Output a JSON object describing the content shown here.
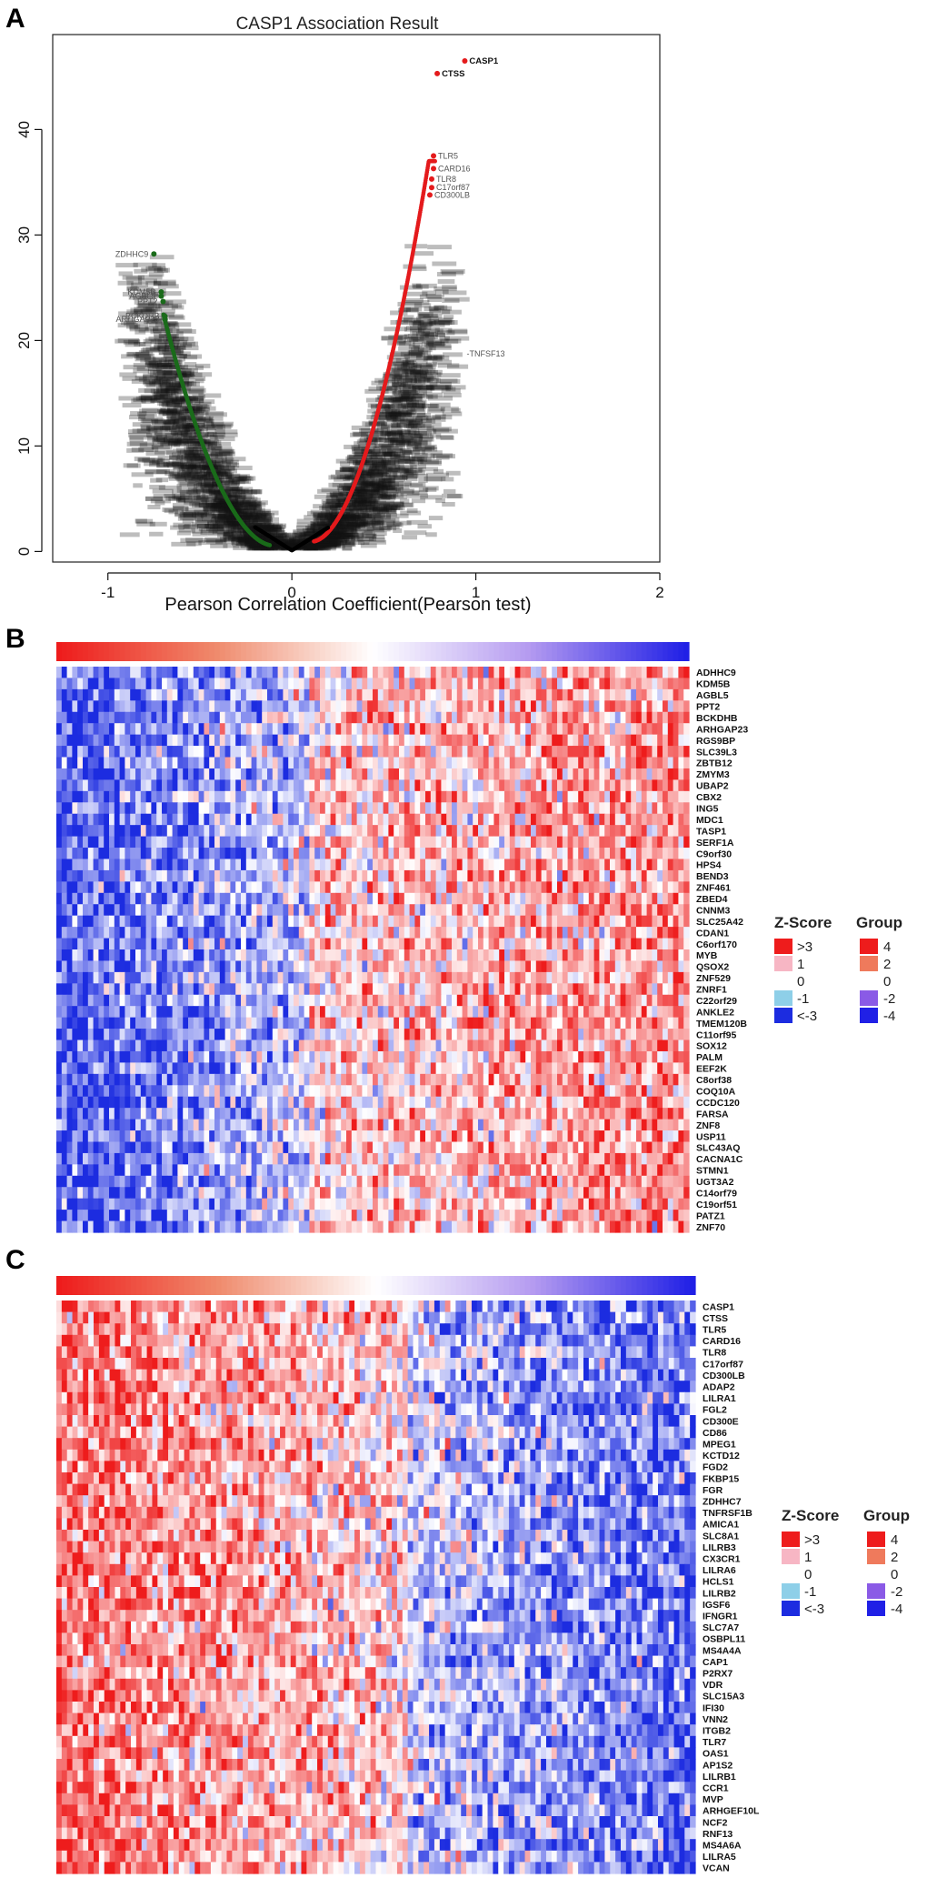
{
  "panels": {
    "a": "A",
    "b": "B",
    "c": "C"
  },
  "chart_data": [
    {
      "type": "scatter",
      "panel": "A",
      "title": "CASP1 Association Result",
      "xlabel": "Pearson Correlation Coefficient(Pearson test)",
      "ylabel": "",
      "xlim": [
        -1.3,
        2.0
      ],
      "ylim": [
        -1,
        49
      ],
      "xticks": [
        "-1",
        "0",
        "1",
        "2"
      ],
      "xtick_values": [
        -1,
        0,
        1,
        2
      ],
      "yticks": [
        "0",
        "10",
        "20",
        "30",
        "40"
      ],
      "ytick_values": [
        0,
        10,
        20,
        30,
        40
      ],
      "colors": {
        "positive": "#e41a1c",
        "negative": "#1a6b1a",
        "background": "#000000"
      },
      "top_positive": [
        {
          "gene": "CASP1",
          "x": 0.94,
          "y": 46.5
        },
        {
          "gene": "CTSS",
          "x": 0.79,
          "y": 45.3
        },
        {
          "gene": "TLR5",
          "x": 0.77,
          "y": 37.5
        },
        {
          "gene": "CARD16",
          "x": 0.77,
          "y": 36.3
        },
        {
          "gene": "TLR8",
          "x": 0.76,
          "y": 35.3
        },
        {
          "gene": "C17orf87",
          "x": 0.76,
          "y": 34.5
        },
        {
          "gene": "CD300LB",
          "x": 0.75,
          "y": 33.8
        }
      ],
      "top_negative": [
        {
          "gene": "ZDHHC9",
          "x": -0.75,
          "y": 28.2
        },
        {
          "gene": "KDM5B",
          "x": -0.71,
          "y": 24.6
        },
        {
          "gene": "AGBL5",
          "x": -0.71,
          "y": 24.2
        },
        {
          "gene": "PPT2",
          "x": -0.7,
          "y": 23.7
        },
        {
          "gene": "BCKDHB",
          "x": -0.69,
          "y": 22.3
        },
        {
          "gene": "ARHGAP23",
          "x": -0.69,
          "y": 22.0
        }
      ],
      "curve_labels": [
        "TNFSF13"
      ]
    },
    {
      "type": "heatmap",
      "panel": "B",
      "pattern": "negative",
      "rows": [
        "ADHHC9",
        "KDM5B",
        "AGBL5",
        "PPT2",
        "BCKDHB",
        "ARHGAP23",
        "RGS9BP",
        "SLC39L3",
        "ZBTB12",
        "ZMYM3",
        "UBAP2",
        "CBX2",
        "ING5",
        "MDC1",
        "TASP1",
        "SERF1A",
        "C9orf30",
        "HPS4",
        "BEND3",
        "ZNF461",
        "ZBED4",
        "CNNM3",
        "SLC25A42",
        "CDAN1",
        "C6orf170",
        "MYB",
        "QSOX2",
        "ZNF529",
        "ZNRF1",
        "C22orf29",
        "ANKLE2",
        "TMEM120B",
        "C11orf95",
        "SOX12",
        "PALM",
        "EEF2K",
        "C8orf38",
        "COQ10A",
        "CCDC120",
        "FARSA",
        "ZNF8",
        "USP11",
        "SLC43AQ",
        "CACNA1C",
        "STMN1",
        "UGT3A2",
        "C14orf79",
        "C19orf51",
        "PATZ1",
        "ZNF70"
      ],
      "legend": {
        "zscore_title": "Z-Score",
        "zscore_labels": [
          ">3",
          "1",
          "0",
          "-1",
          "<-3"
        ],
        "zscore_colors": [
          "#ee1c1c",
          "#f7b6c4",
          "#ffffff",
          "#8ecfe8",
          "#1c2ce0"
        ],
        "group_title": "Group",
        "group_labels": [
          "4",
          "2",
          "0",
          "-2",
          "-4"
        ],
        "group_colors": [
          "#ee1c1c",
          "#ef7a5c",
          "#ffffff",
          "#8a5ae6",
          "#2020e6"
        ]
      }
    },
    {
      "type": "heatmap",
      "panel": "C",
      "pattern": "positive",
      "rows": [
        "CASP1",
        "CTSS",
        "TLR5",
        "CARD16",
        "TLR8",
        "C17orf87",
        "CD300LB",
        "ADAP2",
        "LILRA1",
        "FGL2",
        "CD300E",
        "CD86",
        "MPEG1",
        "KCTD12",
        "FGD2",
        "FKBP15",
        "FGR",
        "ZDHHC7",
        "TNFRSF1B",
        "AMICA1",
        "SLC8A1",
        "LILRB3",
        "CX3CR1",
        "LILRA6",
        "HCLS1",
        "LILRB2",
        "IGSF6",
        "IFNGR1",
        "SLC7A7",
        "OSBPL11",
        "MS4A4A",
        "CAP1",
        "P2RX7",
        "VDR",
        "SLC15A3",
        "IFI30",
        "VNN2",
        "ITGB2",
        "TLR7",
        "OAS1",
        "AP1S2",
        "LILRB1",
        "CCR1",
        "MVP",
        "ARHGEF10L",
        "NCF2",
        "RNF13",
        "MS4A6A",
        "LILRA5",
        "VCAN"
      ],
      "legend": {
        "zscore_title": "Z-Score",
        "zscore_labels": [
          ">3",
          "1",
          "0",
          "-1",
          "<-3"
        ],
        "zscore_colors": [
          "#ee1c1c",
          "#f7b6c4",
          "#ffffff",
          "#8ecfe8",
          "#1c2ce0"
        ],
        "group_title": "Group",
        "group_labels": [
          "4",
          "2",
          "0",
          "-2",
          "-4"
        ],
        "group_colors": [
          "#ee1c1c",
          "#ef7a5c",
          "#ffffff",
          "#8a5ae6",
          "#2020e6"
        ]
      }
    }
  ]
}
